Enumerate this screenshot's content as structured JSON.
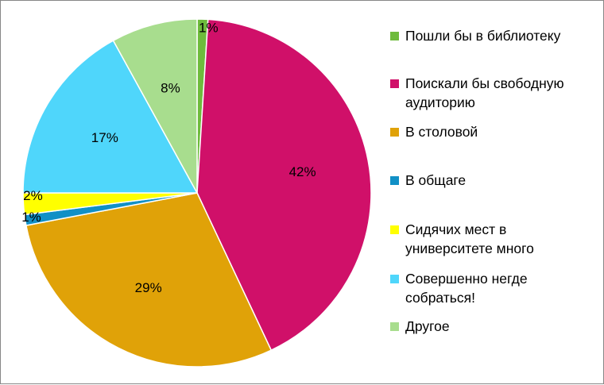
{
  "chart_data": {
    "type": "pie",
    "title": "",
    "legend_position": "right",
    "slices": [
      {
        "label": "Пошли бы в библиотеку",
        "value": 1,
        "display": "1%",
        "color": "#6ebb3c"
      },
      {
        "label": "Поискали бы свободную аудиторию",
        "value": 42,
        "display": "42%",
        "color": "#d01069"
      },
      {
        "label": "В столовой",
        "value": 29,
        "display": "29%",
        "color": "#e0a208"
      },
      {
        "label": "В общаге",
        "value": 1,
        "display": "1%",
        "color": "#1190c6"
      },
      {
        "label": "Сидячих мест в университете много",
        "value": 2,
        "display": "2%",
        "color": "#ffff00"
      },
      {
        "label": "Совершенно негде собраться!",
        "value": 17,
        "display": "17%",
        "color": "#4fd6fb"
      },
      {
        "label": "Другое",
        "value": 8,
        "display": "8%",
        "color": "#a8dd8e"
      }
    ]
  }
}
